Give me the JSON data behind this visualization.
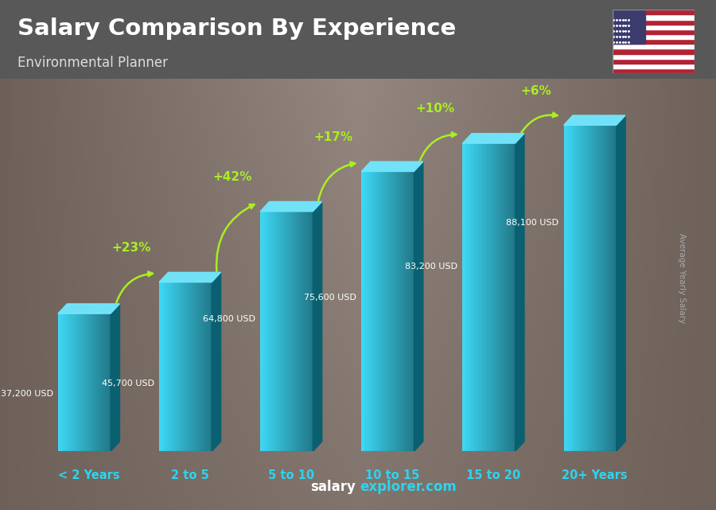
{
  "title": "Salary Comparison By Experience",
  "subtitle": "Environmental Planner",
  "ylabel": "Average Yearly Salary",
  "categories": [
    "< 2 Years",
    "2 to 5",
    "5 to 10",
    "10 to 15",
    "15 to 20",
    "20+ Years"
  ],
  "values": [
    37200,
    45700,
    64800,
    75600,
    83200,
    88100
  ],
  "value_labels": [
    "37,200 USD",
    "45,700 USD",
    "64,800 USD",
    "75,600 USD",
    "83,200 USD",
    "88,100 USD"
  ],
  "pct_labels": [
    "+23%",
    "+42%",
    "+17%",
    "+10%",
    "+6%"
  ],
  "bar_color_light": "#3dd8f5",
  "bar_color_main": "#1dbbd8",
  "bar_color_dark": "#0e88a8",
  "bar_color_side": "#0a6070",
  "bar_color_top_light": "#70e8ff",
  "bg_header": "#636363",
  "bg_body": "#585858",
  "title_color": "#ffffff",
  "subtitle_color": "#dddddd",
  "cat_color": "#2dd4f0",
  "pct_color": "#aaee22",
  "value_label_color": "#ffffff",
  "ylabel_color": "#aaaaaa",
  "footer_salary_color": "#ffffff",
  "footer_explorer_color": "#2dd4f0",
  "figsize": [
    9.0,
    6.41
  ],
  "dpi": 100
}
